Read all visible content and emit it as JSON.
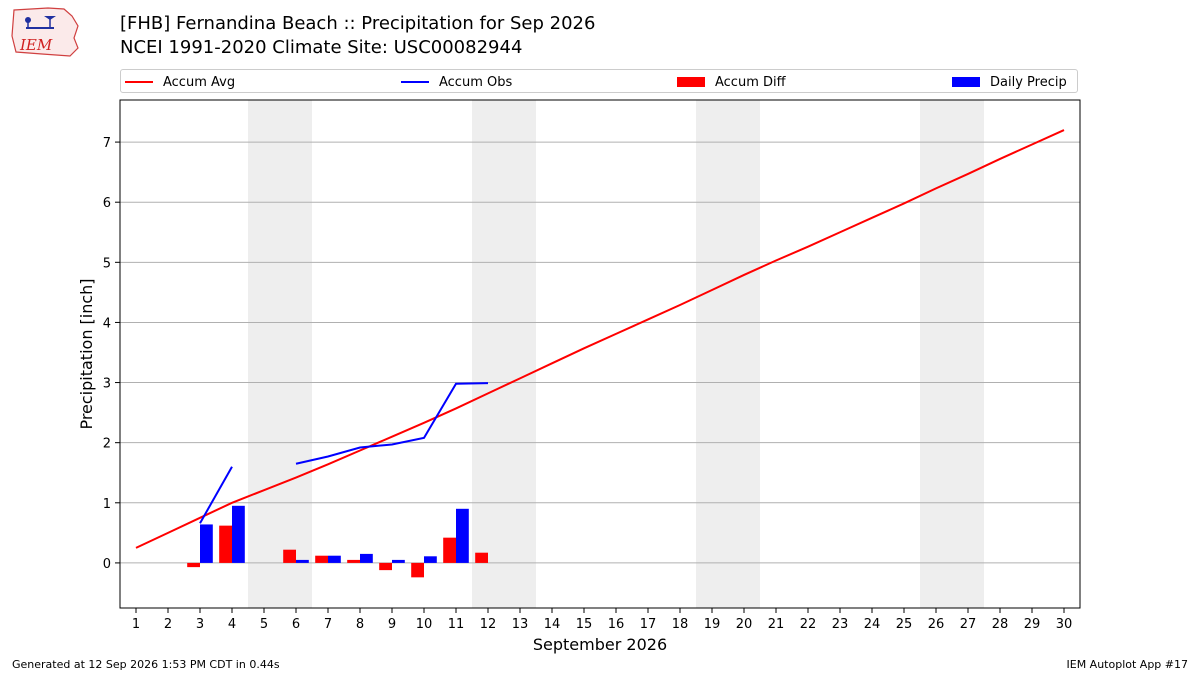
{
  "header": {
    "logo_text": "IEM",
    "title_line1": "[FHB] Fernandina Beach :: Precipitation for Sep 2026",
    "title_line2": "NCEI 1991-2020 Climate Site: USC00082944"
  },
  "footer": {
    "generated": "Generated at 12 Sep 2026 1:53 PM CDT in 0.44s",
    "app": "IEM Autoplot App #17"
  },
  "colors": {
    "avg": "#ff0000",
    "obs": "#0000ff",
    "weekend_shade": "#eeeeee",
    "grid": "#b0b0b0"
  },
  "chart_data": {
    "type": "bar",
    "xlabel": "September 2026",
    "ylabel": "Precipitation [inch]",
    "xlim": [
      0.5,
      30.5
    ],
    "ylim": [
      -0.75,
      7.7
    ],
    "x_ticks": [
      1,
      2,
      3,
      4,
      5,
      6,
      7,
      8,
      9,
      10,
      11,
      12,
      13,
      14,
      15,
      16,
      17,
      18,
      19,
      20,
      21,
      22,
      23,
      24,
      25,
      26,
      27,
      28,
      29,
      30
    ],
    "y_ticks": [
      0,
      1,
      2,
      3,
      4,
      5,
      6,
      7
    ],
    "grid": "horizontal",
    "legend_position": "top",
    "weekend_shading": [
      [
        5,
        6
      ],
      [
        12,
        13
      ],
      [
        19,
        20
      ],
      [
        26,
        27
      ]
    ],
    "legend": [
      {
        "name": "Accum Avg",
        "kind": "line",
        "color": "#ff0000"
      },
      {
        "name": "Accum Obs",
        "kind": "line",
        "color": "#0000ff"
      },
      {
        "name": "Accum Diff",
        "kind": "bar",
        "color": "#ff0000"
      },
      {
        "name": "Daily Precip",
        "kind": "bar",
        "color": "#0000ff"
      }
    ],
    "accum_avg": {
      "x": [
        1,
        2,
        3,
        4,
        5,
        6,
        7,
        8,
        9,
        10,
        11,
        12,
        13,
        14,
        15,
        16,
        17,
        18,
        19,
        20,
        21,
        22,
        23,
        24,
        25,
        26,
        27,
        28,
        29,
        30
      ],
      "y": [
        0.25,
        0.5,
        0.75,
        1.0,
        1.21,
        1.42,
        1.64,
        1.87,
        2.1,
        2.33,
        2.57,
        2.82,
        3.07,
        3.32,
        3.57,
        3.81,
        4.05,
        4.29,
        4.54,
        4.79,
        5.03,
        5.26,
        5.5,
        5.74,
        5.98,
        6.23,
        6.47,
        6.72,
        6.96,
        7.2
      ]
    },
    "accum_obs": [
      {
        "x": [
          3,
          4
        ],
        "y": [
          0.66,
          1.6
        ]
      },
      {
        "x": [
          6,
          7,
          8,
          9,
          10,
          11,
          12
        ],
        "y": [
          1.65,
          1.77,
          1.92,
          1.97,
          2.08,
          2.98,
          2.99
        ]
      }
    ],
    "accum_diff": {
      "x": [
        3,
        4,
        6,
        7,
        8,
        9,
        10,
        11,
        12
      ],
      "y": [
        -0.07,
        0.62,
        0.22,
        0.12,
        0.05,
        -0.12,
        -0.24,
        0.42,
        0.17
      ]
    },
    "daily_precip": {
      "x": [
        3,
        4,
        6,
        7,
        8,
        9,
        10,
        11,
        12
      ],
      "y": [
        0.64,
        0.95,
        0.05,
        0.12,
        0.15,
        0.05,
        0.11,
        0.9,
        0.0
      ]
    }
  }
}
